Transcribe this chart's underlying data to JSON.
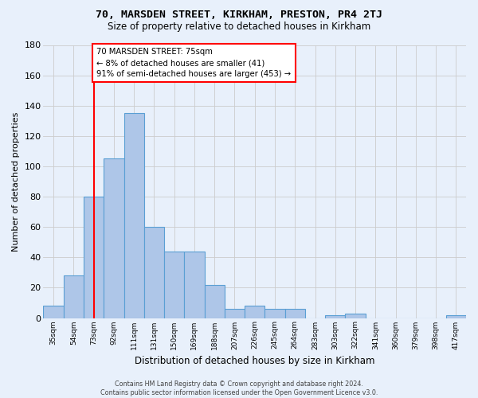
{
  "title": "70, MARSDEN STREET, KIRKHAM, PRESTON, PR4 2TJ",
  "subtitle": "Size of property relative to detached houses in Kirkham",
  "xlabel": "Distribution of detached houses by size in Kirkham",
  "ylabel": "Number of detached properties",
  "footer_line1": "Contains HM Land Registry data © Crown copyright and database right 2024.",
  "footer_line2": "Contains public sector information licensed under the Open Government Licence v3.0.",
  "categories": [
    "35sqm",
    "54sqm",
    "73sqm",
    "92sqm",
    "111sqm",
    "131sqm",
    "150sqm",
    "169sqm",
    "188sqm",
    "207sqm",
    "226sqm",
    "245sqm",
    "264sqm",
    "283sqm",
    "303sqm",
    "322sqm",
    "341sqm",
    "360sqm",
    "379sqm",
    "398sqm",
    "417sqm"
  ],
  "values": [
    8,
    28,
    80,
    105,
    135,
    60,
    44,
    44,
    22,
    6,
    8,
    6,
    6,
    0,
    2,
    3,
    0,
    0,
    0,
    0,
    2
  ],
  "bar_color": "#aec6e8",
  "bar_edge_color": "#5a9fd4",
  "grid_color": "#cccccc",
  "background_color": "#e8f0fb",
  "vline_x_index": 2,
  "vline_color": "red",
  "annotation_line1": "70 MARSDEN STREET: 75sqm",
  "annotation_line2": "← 8% of detached houses are smaller (41)",
  "annotation_line3": "91% of semi-detached houses are larger (453) →",
  "annotation_box_color": "white",
  "annotation_box_edge": "red",
  "ylim": [
    0,
    180
  ],
  "yticks": [
    0,
    20,
    40,
    60,
    80,
    100,
    120,
    140,
    160,
    180
  ]
}
